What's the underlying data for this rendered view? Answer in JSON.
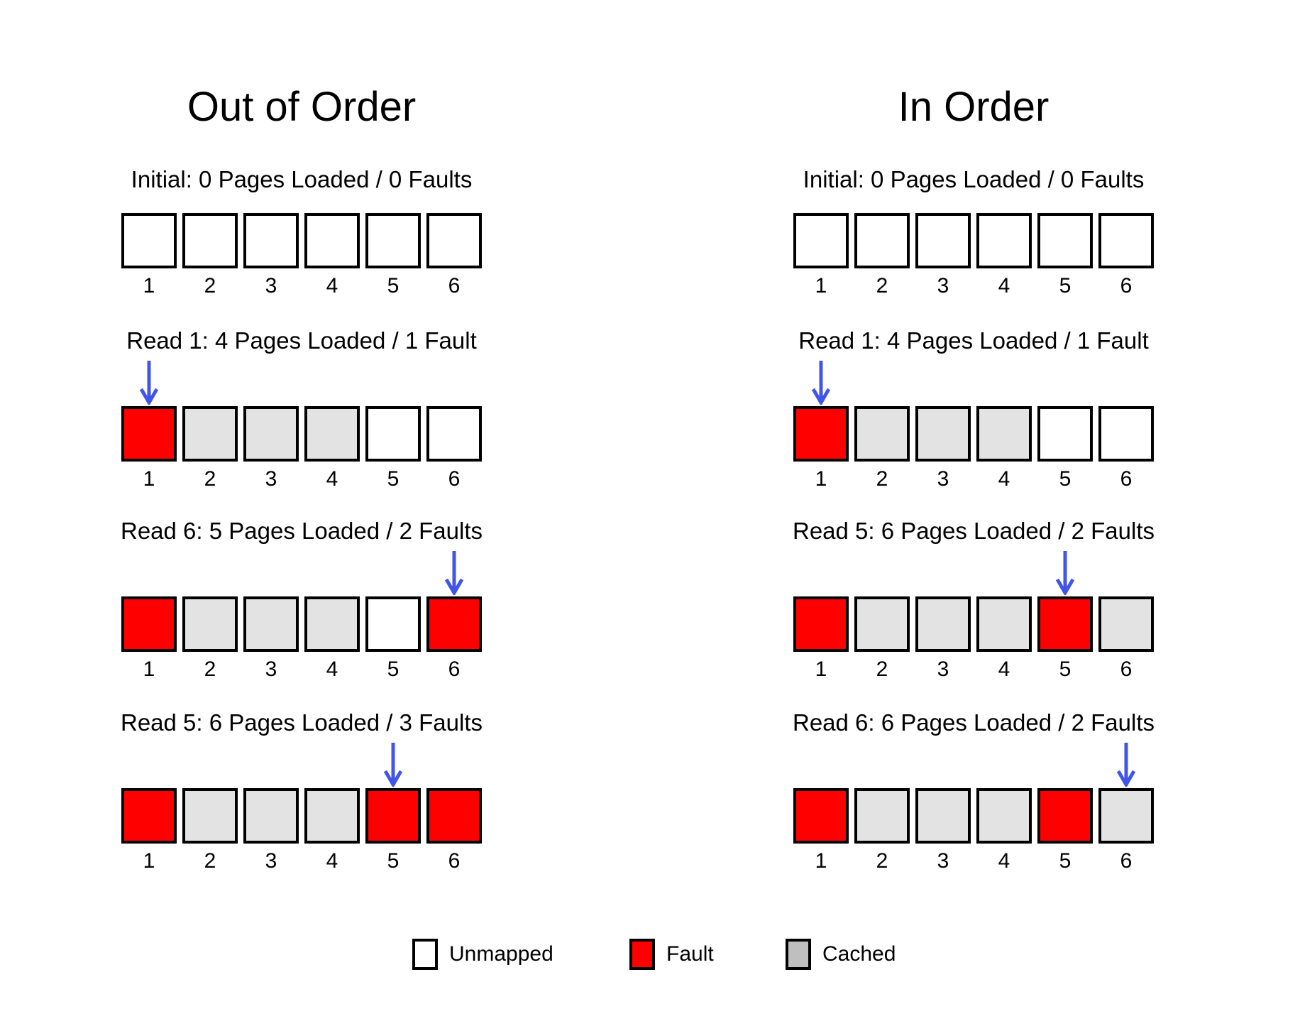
{
  "colors": {
    "unmapped": "#FFFFFF",
    "fault": "#FF0000",
    "cached": "#E3E3E3",
    "legend_cached_swatch": "#BFBFBF",
    "arrow": "#4156E8",
    "border": "#000000"
  },
  "cell_numbers": [
    "1",
    "2",
    "3",
    "4",
    "5",
    "6"
  ],
  "columns": [
    {
      "title": "Out of Order",
      "steps": [
        {
          "label": "Initial: 0 Pages Loaded / 0 Faults",
          "arrow_cell": null,
          "cells": [
            "unmapped",
            "unmapped",
            "unmapped",
            "unmapped",
            "unmapped",
            "unmapped"
          ]
        },
        {
          "label": "Read 1: 4 Pages Loaded / 1 Fault",
          "arrow_cell": 1,
          "cells": [
            "fault",
            "cached",
            "cached",
            "cached",
            "unmapped",
            "unmapped"
          ]
        },
        {
          "label": "Read 6: 5 Pages Loaded / 2 Faults",
          "arrow_cell": 6,
          "cells": [
            "fault",
            "cached",
            "cached",
            "cached",
            "unmapped",
            "fault"
          ]
        },
        {
          "label": "Read 5: 6 Pages Loaded / 3 Faults",
          "arrow_cell": 5,
          "cells": [
            "fault",
            "cached",
            "cached",
            "cached",
            "fault",
            "fault"
          ]
        }
      ]
    },
    {
      "title": "In Order",
      "steps": [
        {
          "label": "Initial: 0 Pages Loaded / 0 Faults",
          "arrow_cell": null,
          "cells": [
            "unmapped",
            "unmapped",
            "unmapped",
            "unmapped",
            "unmapped",
            "unmapped"
          ]
        },
        {
          "label": "Read 1: 4 Pages Loaded / 1 Fault",
          "arrow_cell": 1,
          "cells": [
            "fault",
            "cached",
            "cached",
            "cached",
            "unmapped",
            "unmapped"
          ]
        },
        {
          "label": "Read 5: 6 Pages Loaded / 2 Faults",
          "arrow_cell": 5,
          "cells": [
            "fault",
            "cached",
            "cached",
            "cached",
            "fault",
            "cached"
          ]
        },
        {
          "label": "Read 6: 6 Pages Loaded / 2 Faults",
          "arrow_cell": 6,
          "cells": [
            "fault",
            "cached",
            "cached",
            "cached",
            "fault",
            "cached"
          ]
        }
      ]
    }
  ],
  "legend": [
    {
      "label": "Unmapped",
      "state": "unmapped"
    },
    {
      "label": "Fault",
      "state": "fault"
    },
    {
      "label": "Cached",
      "state": "legend_cached_swatch"
    }
  ]
}
